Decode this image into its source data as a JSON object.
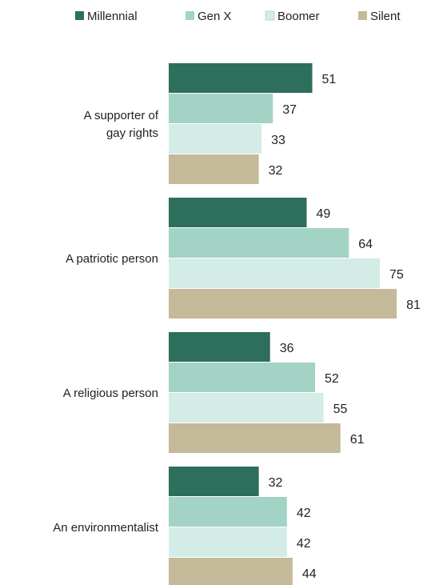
{
  "chart_data": {
    "type": "bar",
    "orientation": "horizontal",
    "categories": [
      [
        "A supporter of",
        "gay rights"
      ],
      [
        "A patriotic person"
      ],
      [
        "A religious person"
      ],
      [
        "An environmentalist"
      ]
    ],
    "series": [
      {
        "name": "Millennial",
        "color": "#2e6e5c",
        "values": [
          51,
          49,
          36,
          32
        ]
      },
      {
        "name": "Gen X",
        "color": "#a3d3c5",
        "values": [
          37,
          64,
          52,
          42
        ]
      },
      {
        "name": "Boomer",
        "color": "#d3ece6",
        "values": [
          33,
          75,
          55,
          42
        ]
      },
      {
        "name": "Silent",
        "color": "#c4b999",
        "values": [
          32,
          81,
          61,
          44
        ]
      }
    ],
    "xlim": [
      0,
      100
    ],
    "grid": false,
    "legend_position": "top"
  }
}
